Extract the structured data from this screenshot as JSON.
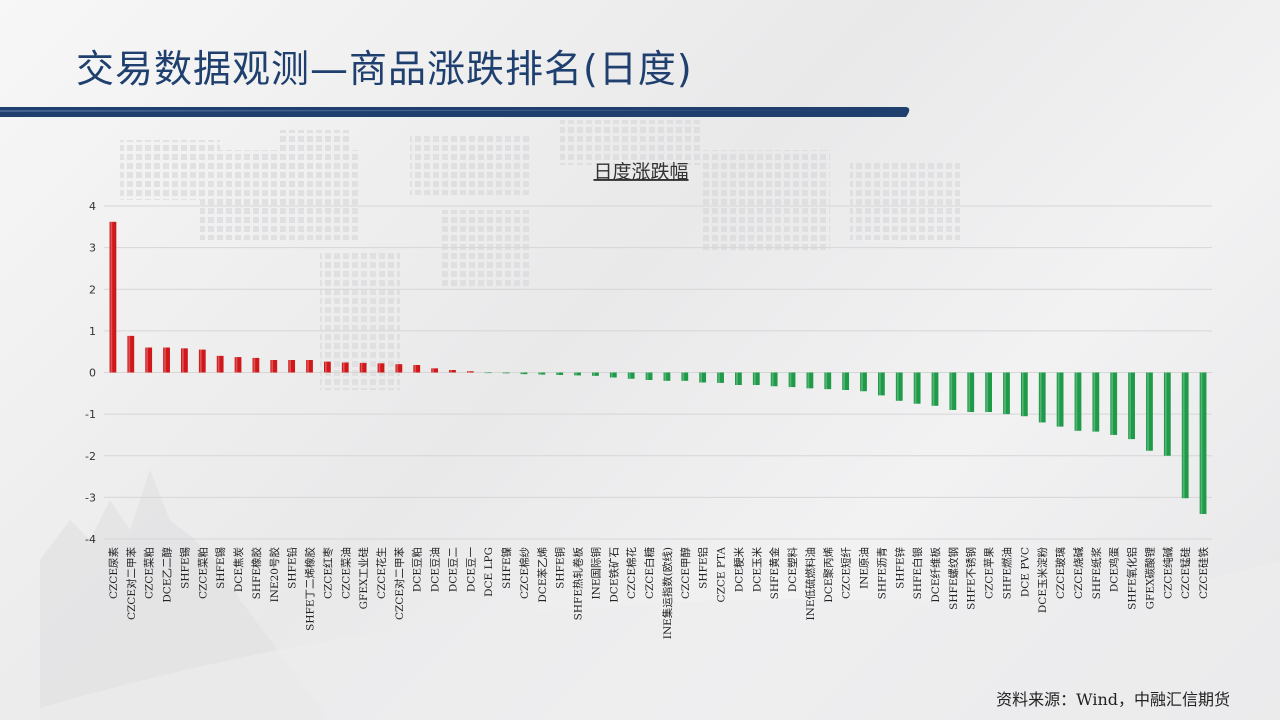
{
  "page": {
    "title": "交易数据观测—商品涨跌排名(日度)",
    "source": "资料来源：Wind，中融汇信期货"
  },
  "colors": {
    "title": "#1f3f6e",
    "title_bar": "#1f3f6e",
    "up": "#d0181b",
    "down": "#1e9a48",
    "grid": "#d6d6d6"
  },
  "chart_data": {
    "type": "bar",
    "title": "日度涨跌幅",
    "xlabel": "",
    "ylabel": "",
    "ylim": [
      -4,
      4
    ],
    "yticks": [
      4,
      3,
      2,
      1,
      0,
      -1,
      -2,
      -3,
      -4
    ],
    "grid": true,
    "legend": "none",
    "categories": [
      "CZCE尿素",
      "CZCE对二甲苯",
      "CZCE菜粕",
      "DCE乙二醇",
      "SHFE锡",
      "CZCE菜粕",
      "SHFE锡",
      "DCE焦炭",
      "SHFE橡胶",
      "INE20号胶",
      "SHFE铅",
      "SHFE丁二烯橡胶",
      "CZCE红枣",
      "CZCE菜油",
      "GFEX工业硅",
      "CZCE花生",
      "CZCE对二甲苯",
      "DCE豆粕",
      "DCE豆油",
      "DCE豆二",
      "DCE豆一",
      "DCE LPG",
      "SHFE镍",
      "CZCE棉纱",
      "DCE苯乙烯",
      "SHFE铜",
      "SHFE热轧卷板",
      "INE国际铜",
      "DCE铁矿石",
      "CZCE棉花",
      "CZCE白糖",
      "INE集运指数(欧线)",
      "CZCE甲醇",
      "SHFE铝",
      "CZCE PTA",
      "DCE粳米",
      "DCE玉米",
      "SHFE黄金",
      "DCE塑料",
      "INE低硫燃料油",
      "DCE聚丙烯",
      "CZCE短纤",
      "INE原油",
      "SHFE沥青",
      "SHFE锌",
      "SHFE白银",
      "DCE纤维板",
      "SHFE螺纹钢",
      "SHFE不锈钢",
      "CZCE苹果",
      "SHFE燃油",
      "DCE PVC",
      "DCE玉米淀粉",
      "CZCE玻璃",
      "CZCE烧碱",
      "SHFE纸浆",
      "DCE鸡蛋",
      "SHFE氧化铝",
      "GFEX碳酸锂",
      "CZCE纯碱",
      "CZCE锰硅",
      "CZCE硅铁"
    ],
    "values": [
      3.62,
      0.88,
      0.6,
      0.6,
      0.58,
      0.55,
      0.4,
      0.37,
      0.35,
      0.3,
      0.3,
      0.3,
      0.26,
      0.24,
      0.23,
      0.22,
      0.2,
      0.18,
      0.1,
      0.06,
      0.03,
      -0.01,
      -0.02,
      -0.04,
      -0.05,
      -0.06,
      -0.07,
      -0.08,
      -0.12,
      -0.15,
      -0.18,
      -0.2,
      -0.2,
      -0.24,
      -0.25,
      -0.3,
      -0.3,
      -0.33,
      -0.35,
      -0.38,
      -0.4,
      -0.42,
      -0.45,
      -0.55,
      -0.68,
      -0.75,
      -0.8,
      -0.9,
      -0.95,
      -0.95,
      -1.0,
      -1.05,
      -1.2,
      -1.3,
      -1.4,
      -1.42,
      -1.5,
      -1.6,
      -1.88,
      -2.0,
      -3.02,
      -3.4
    ]
  }
}
